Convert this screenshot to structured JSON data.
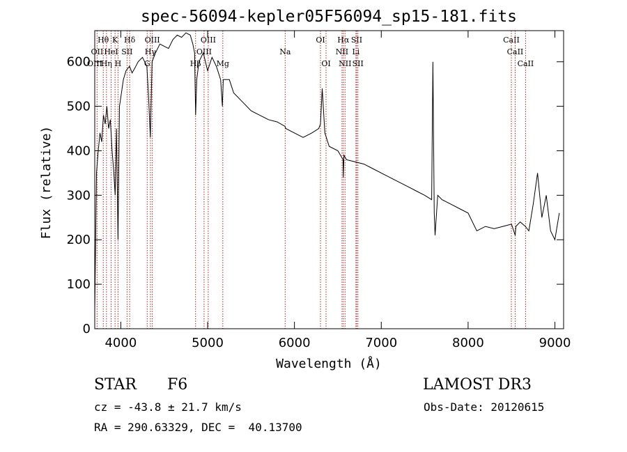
{
  "chart_data": {
    "type": "line",
    "title": "spec-56094-kepler05F56094_sp15-181.fits",
    "xlabel": "Wavelength (Å)",
    "ylabel": "Flux (relative)",
    "xlim": [
      3700,
      9100
    ],
    "ylim": [
      0,
      670
    ],
    "xticks": [
      4000,
      5000,
      6000,
      7000,
      8000,
      9000
    ],
    "yticks": [
      0,
      100,
      200,
      300,
      400,
      500,
      600
    ],
    "series": [
      {
        "name": "spectrum",
        "x": [
          3700,
          3720,
          3740,
          3760,
          3780,
          3800,
          3820,
          3840,
          3860,
          3880,
          3900,
          3920,
          3935,
          3950,
          3968,
          3985,
          4000,
          4030,
          4060,
          4100,
          4130,
          4160,
          4200,
          4250,
          4300,
          4320,
          4340,
          4360,
          4400,
          4450,
          4500,
          4550,
          4600,
          4650,
          4700,
          4750,
          4800,
          4830,
          4850,
          4862,
          4875,
          4900,
          4950,
          5000,
          5050,
          5100,
          5150,
          5170,
          5180,
          5200,
          5250,
          5300,
          5400,
          5500,
          5600,
          5700,
          5800,
          5890,
          5900,
          6000,
          6100,
          6200,
          6280,
          6300,
          6320,
          6350,
          6400,
          6500,
          6560,
          6563,
          6570,
          6600,
          6700,
          6800,
          6900,
          7000,
          7100,
          7200,
          7300,
          7400,
          7500,
          7580,
          7595,
          7610,
          7620,
          7650,
          7700,
          7800,
          7900,
          8000,
          8100,
          8200,
          8300,
          8400,
          8500,
          8542,
          8550,
          8600,
          8660,
          8700,
          8750,
          8800,
          8850,
          8900,
          8950,
          9000,
          9050
        ],
        "y": [
          40,
          350,
          400,
          440,
          420,
          480,
          460,
          500,
          450,
          470,
          400,
          350,
          300,
          450,
          200,
          500,
          520,
          560,
          580,
          590,
          575,
          585,
          600,
          610,
          590,
          520,
          430,
          600,
          620,
          640,
          635,
          630,
          650,
          660,
          655,
          665,
          660,
          640,
          620,
          480,
          560,
          600,
          620,
          580,
          610,
          590,
          560,
          500,
          560,
          560,
          560,
          530,
          510,
          490,
          480,
          470,
          465,
          455,
          450,
          440,
          430,
          440,
          450,
          460,
          540,
          440,
          410,
          400,
          380,
          340,
          390,
          380,
          375,
          370,
          360,
          350,
          340,
          330,
          320,
          310,
          300,
          290,
          600,
          260,
          210,
          300,
          290,
          280,
          270,
          260,
          220,
          230,
          225,
          230,
          235,
          210,
          230,
          240,
          230,
          220,
          280,
          350,
          250,
          300,
          220,
          200,
          260
        ]
      }
    ],
    "spectral_lines": [
      {
        "label": "Hθ",
        "x": 3798,
        "row": 0
      },
      {
        "label": "K",
        "x": 3934,
        "row": 0
      },
      {
        "label": "Hδ",
        "x": 4102,
        "row": 0
      },
      {
        "label": "OIII",
        "x": 4363,
        "row": 0
      },
      {
        "label": "OIII",
        "x": 5007,
        "row": 0
      },
      {
        "label": "Na",
        "x": 5893,
        "row": 1
      },
      {
        "label": "OI",
        "x": 6300,
        "row": 0
      },
      {
        "label": "Hα",
        "x": 6563,
        "row": 0
      },
      {
        "label": "SII",
        "x": 6717,
        "row": 0
      },
      {
        "label": "CaII",
        "x": 8498,
        "row": 0
      },
      {
        "label": "OII",
        "x": 3727,
        "row": 1
      },
      {
        "label": "HeI",
        "x": 3889,
        "row": 1
      },
      {
        "label": "SII",
        "x": 4072,
        "row": 1
      },
      {
        "label": "Hγ",
        "x": 4341,
        "row": 1
      },
      {
        "label": "OIII",
        "x": 4959,
        "row": 1
      },
      {
        "label": "NII",
        "x": 6548,
        "row": 1
      },
      {
        "label": "Li",
        "x": 6708,
        "row": 1
      },
      {
        "label": "CaII",
        "x": 8542,
        "row": 1
      },
      {
        "label": "OIII",
        "x": 3700,
        "row": 2
      },
      {
        "label": "Hη",
        "x": 3835,
        "row": 2
      },
      {
        "label": "H",
        "x": 3968,
        "row": 2
      },
      {
        "label": "G",
        "x": 4304,
        "row": 2
      },
      {
        "label": "Hβ",
        "x": 4861,
        "row": 2
      },
      {
        "label": "Mg",
        "x": 5175,
        "row": 2
      },
      {
        "label": "OI",
        "x": 6364,
        "row": 2
      },
      {
        "label": "NII",
        "x": 6583,
        "row": 2
      },
      {
        "label": "SII",
        "x": 6731,
        "row": 2
      },
      {
        "label": "CaII",
        "x": 8662,
        "row": 2
      }
    ],
    "colors": {
      "spectrum": "#000000",
      "lines": "#b22222",
      "axes": "#000000"
    }
  },
  "info": {
    "class_label": "STAR",
    "subclass": "F6",
    "survey": "LAMOST DR3",
    "cz": "cz = -43.8 ± 21.7 km/s",
    "obs_date": "Obs-Date: 20120615",
    "coords": "RA = 290.63329, DEC =  40.13700"
  }
}
